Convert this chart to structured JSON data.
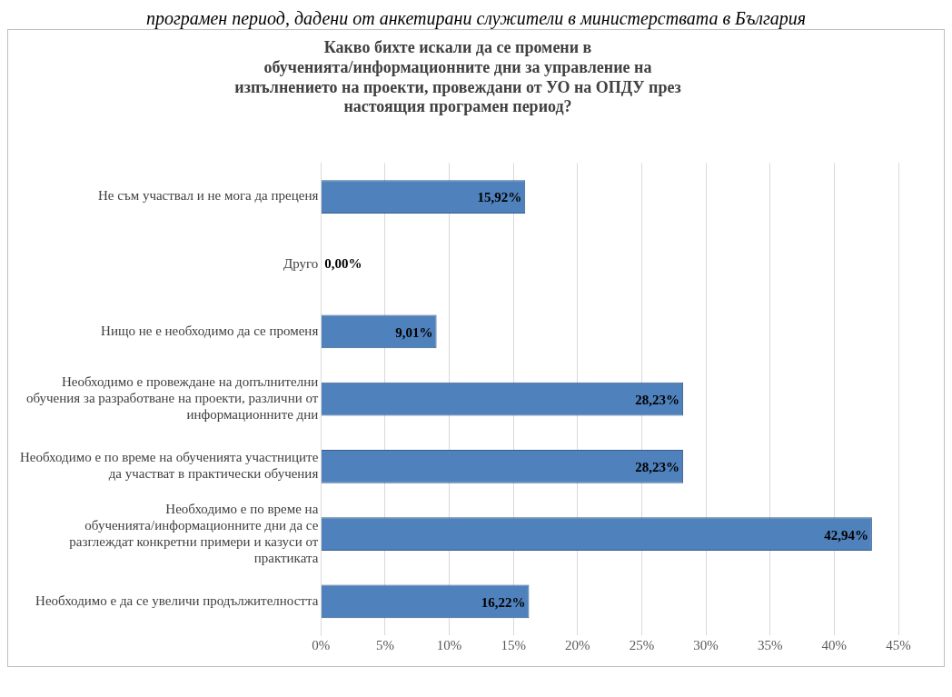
{
  "chart_data": {
    "type": "bar",
    "orientation": "horizontal",
    "title": "Какво бихте искали да се промени в обученията/информационните дни за управление на изпълнението на проекти, провеждани от УО на ОПДУ през настоящия програмен период?",
    "annotations": [
      "програмен период, дадени от анкетирани служители в министерствата в България"
    ],
    "categories": [
      "Не съм участвал и не мога да преценя",
      "Друго",
      "Нищо не е необходимо да се променя",
      "Необходимо е провеждане на допълнителни обучения за разработване на проекти, различни от информационните дни",
      "Необходимо е по време на обученията участниците да участват в практически обучения",
      "Необходимо е по време на обученията/информационните дни да се разглеждат конкретни примери и казуси от практиката",
      "Необходимо е да се увеличи продължителността"
    ],
    "values": [
      15.92,
      0,
      9.01,
      28.23,
      28.23,
      42.94,
      16.22
    ],
    "value_labels": [
      "15,92%",
      "0,00%",
      "9,01%",
      "28,23%",
      "28,23%",
      "42,94%",
      "16,22%"
    ],
    "colors": [
      "#4f81bd",
      "#1f3864",
      "#4f81bd",
      "#4f81bd",
      "#4f81bd",
      "#4f81bd",
      "#4f81bd"
    ],
    "xlim": [
      0,
      45
    ],
    "xticks": [
      {
        "value": 0,
        "label": "0%"
      },
      {
        "value": 5,
        "label": "5%"
      },
      {
        "value": 10,
        "label": "10%"
      },
      {
        "value": 15,
        "label": "15%"
      },
      {
        "value": 20,
        "label": "20%"
      },
      {
        "value": 25,
        "label": "25%"
      },
      {
        "value": 30,
        "label": "30%"
      },
      {
        "value": 35,
        "label": "35%"
      },
      {
        "value": 40,
        "label": "40%"
      },
      {
        "value": 45,
        "label": "45%"
      }
    ],
    "grid": "x",
    "legend": false
  }
}
